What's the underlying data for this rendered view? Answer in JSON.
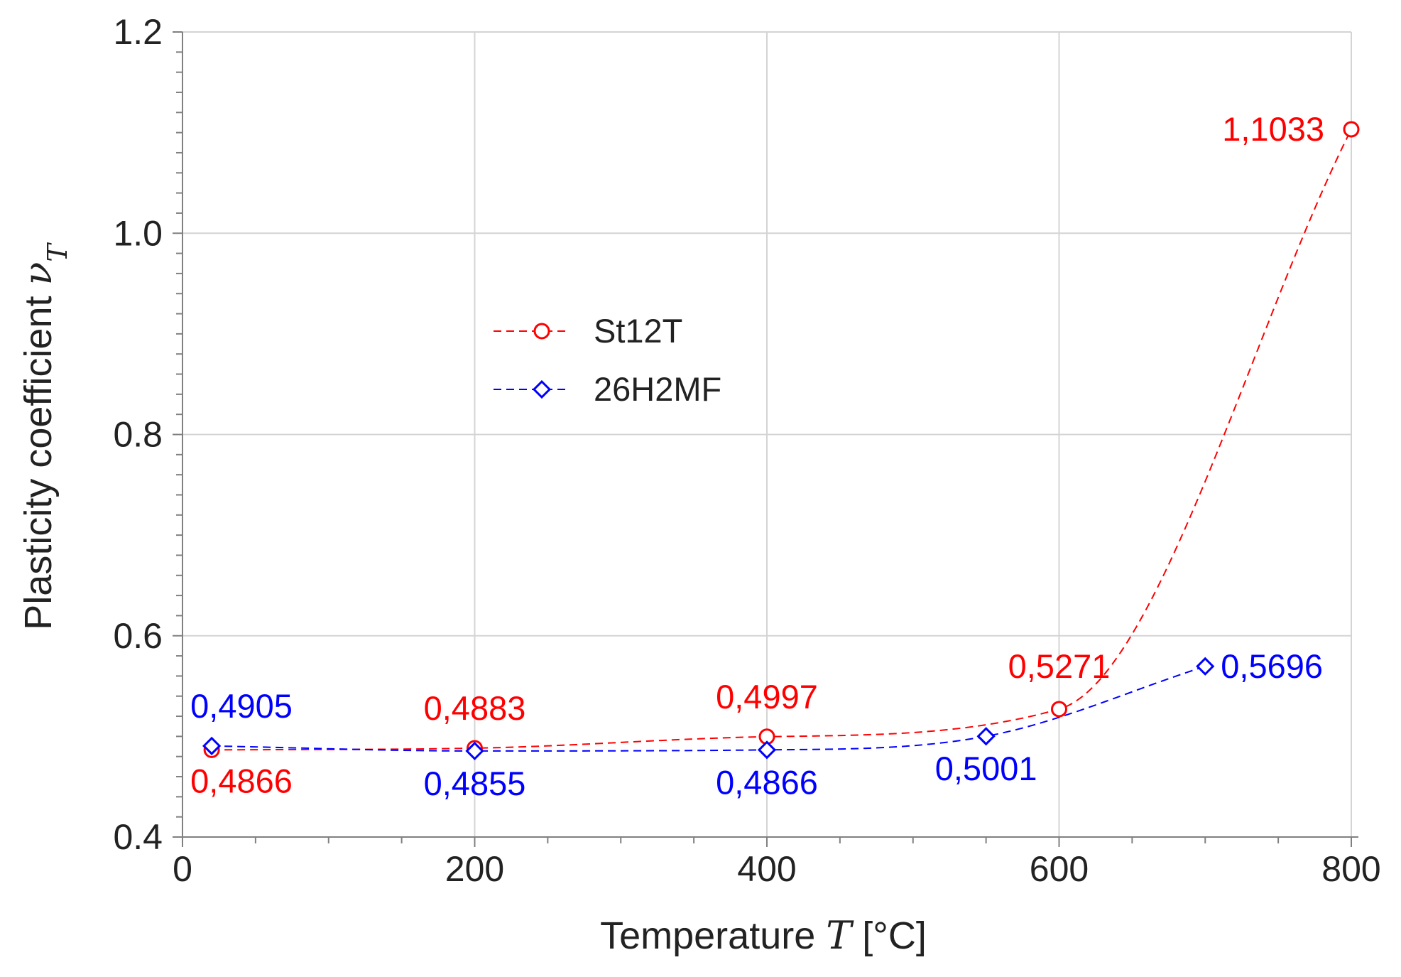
{
  "chart_data": {
    "type": "line",
    "title": "",
    "xlabel": {
      "prefix": "Temperature ",
      "symbol": "T",
      "suffix": " [°C]"
    },
    "ylabel": {
      "prefix": "Plasticity coefficient  ",
      "symbol": "ν",
      "subscript": "T"
    },
    "xlim": [
      0,
      800
    ],
    "ylim": [
      0.4,
      1.2
    ],
    "x_ticks": [
      "0",
      "200",
      "400",
      "600",
      "800"
    ],
    "x_tick_values": [
      0,
      200,
      400,
      600,
      800
    ],
    "y_ticks": [
      "0.4",
      "0.6",
      "0.8",
      "1.0",
      "1.2"
    ],
    "y_tick_values": [
      0.4,
      0.6,
      0.8,
      1.0,
      1.2
    ],
    "grid": true,
    "legend_position": "upper-left-center",
    "series": [
      {
        "name": "St12T",
        "color": "#ff0000",
        "marker": "circle",
        "line_style": "dashed",
        "x": [
          20,
          200,
          400,
          600,
          800
        ],
        "values": [
          0.4866,
          0.4883,
          0.4997,
          0.5271,
          1.1033
        ],
        "labels": [
          "0,4866",
          "0,4883",
          "0,4997",
          "0,5271",
          "1,1033"
        ]
      },
      {
        "name": "26H2MF",
        "color": "#0000ff",
        "marker": "diamond",
        "line_style": "dashed",
        "x": [
          20,
          200,
          400,
          550,
          700
        ],
        "values": [
          0.4905,
          0.4855,
          0.4866,
          0.5001,
          0.5696
        ],
        "labels": [
          "0,4905",
          "0,4855",
          "0,4866",
          "0,5001",
          "0,5696"
        ]
      }
    ]
  }
}
